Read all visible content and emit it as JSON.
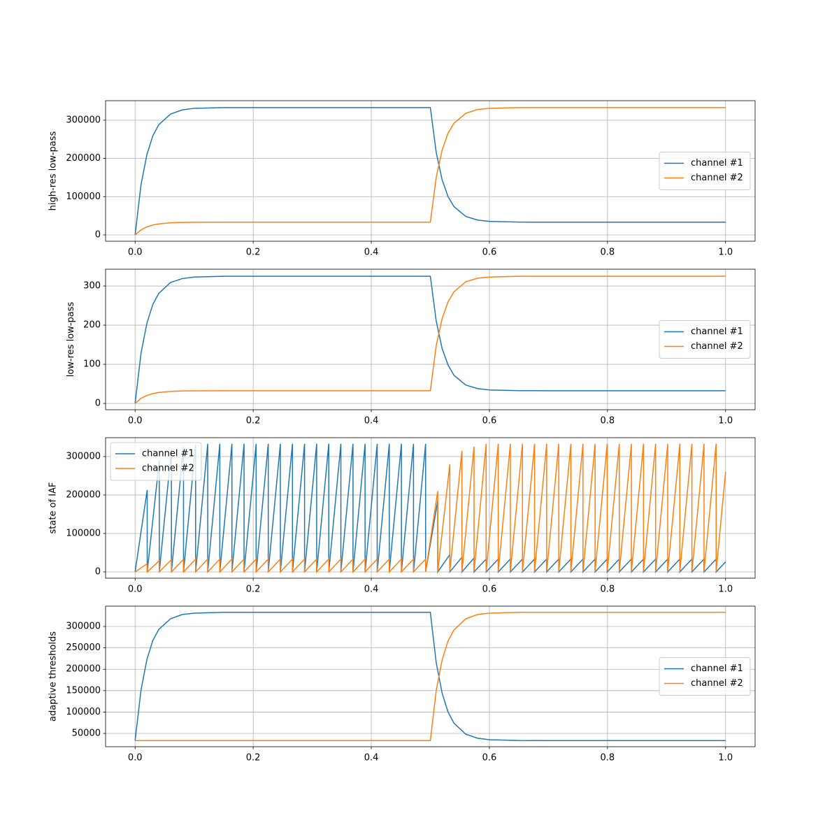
{
  "chart_data": [
    {
      "type": "line",
      "ylabel": "high-res low-pass",
      "grid": true,
      "legend": "center right",
      "xlim": [
        -0.05,
        1.05
      ],
      "ylim": [
        -16500,
        351000
      ],
      "xticks": [
        {
          "value": 0,
          "label": "0.0"
        },
        0.2,
        0.4,
        0.6,
        0.8,
        {
          "value": 1,
          "label": "1.0"
        }
      ],
      "yticks": [
        0,
        100000,
        200000,
        300000
      ],
      "x": [
        0,
        0.01,
        0.02,
        0.03,
        0.04,
        0.06,
        0.08,
        0.1,
        0.15,
        0.2,
        0.3,
        0.4,
        0.5,
        0.51,
        0.52,
        0.53,
        0.54,
        0.56,
        0.58,
        0.6,
        0.65,
        0.7,
        0.8,
        0.9,
        1.0
      ],
      "series": [
        {
          "name": "channel #1",
          "color": "#1f77b4",
          "values": [
            0,
            131000,
            210000,
            259000,
            288000,
            316000,
            327000,
            331000,
            333000,
            333000,
            333000,
            333000,
            333000,
            215000,
            144000,
            100000,
            74000,
            48200,
            38800,
            35300,
            33500,
            33300,
            33300,
            33300,
            33300
          ]
        },
        {
          "name": "channel #2",
          "color": "#ff7f0e",
          "values": [
            0,
            13100,
            21000,
            25900,
            28800,
            31600,
            32700,
            33100,
            33300,
            33300,
            33300,
            33300,
            33300,
            151000,
            222000,
            266000,
            292000,
            318000,
            328000,
            331000,
            333000,
            333000,
            333000,
            333000,
            333000
          ]
        }
      ]
    },
    {
      "type": "line",
      "ylabel": "low-res low-pass",
      "grid": true,
      "legend": "center right",
      "xlim": [
        -0.05,
        1.05
      ],
      "ylim": [
        -16,
        343
      ],
      "xticks": [
        {
          "value": 0,
          "label": "0.0"
        },
        0.2,
        0.4,
        0.6,
        0.8,
        {
          "value": 1,
          "label": "1.0"
        }
      ],
      "yticks": [
        0,
        100,
        200,
        300
      ],
      "x": [
        0,
        0.01,
        0.02,
        0.03,
        0.04,
        0.06,
        0.08,
        0.1,
        0.15,
        0.2,
        0.3,
        0.4,
        0.5,
        0.51,
        0.52,
        0.53,
        0.54,
        0.56,
        0.58,
        0.6,
        0.65,
        0.7,
        0.8,
        0.9,
        1.0
      ],
      "series": [
        {
          "name": "channel #1",
          "color": "#1f77b4",
          "values": [
            0,
            128,
            205,
            253,
            281,
            309,
            319,
            323,
            325,
            325,
            325,
            325,
            325,
            210,
            140,
            98,
            72,
            47,
            38,
            34.5,
            32.7,
            32.5,
            32.5,
            32.5,
            32.5
          ]
        },
        {
          "name": "channel #2",
          "color": "#ff7f0e",
          "values": [
            0,
            13,
            20.5,
            25,
            28,
            31,
            32,
            32.3,
            32.5,
            32.5,
            32.5,
            32.5,
            32.5,
            148,
            217,
            260,
            285,
            311,
            320,
            323,
            325,
            325,
            325,
            325,
            325
          ]
        }
      ]
    },
    {
      "type": "line",
      "ylabel": "state of IAF",
      "grid": true,
      "legend": "upper left",
      "xlim": [
        -0.05,
        1.05
      ],
      "ylim": [
        -16400,
        349000
      ],
      "xticks": [
        {
          "value": 0,
          "label": "0.0"
        },
        0.2,
        0.4,
        0.6,
        0.8,
        {
          "value": 1,
          "label": "1.0"
        }
      ],
      "yticks": [
        0,
        100000,
        200000,
        300000
      ],
      "x": [
        0,
        0.0205,
        0.0205,
        0.041,
        0.041,
        0.0615,
        0.0615,
        0.082,
        0.082,
        0.1025,
        0.1025,
        0.123,
        0.123,
        0.1435,
        0.1435,
        0.164,
        0.164,
        0.1845,
        0.1845,
        0.205,
        0.205,
        0.2255,
        0.2255,
        0.246,
        0.246,
        0.2665,
        0.2665,
        0.287,
        0.287,
        0.3075,
        0.3075,
        0.328,
        0.328,
        0.3485,
        0.3485,
        0.369,
        0.369,
        0.3895,
        0.3895,
        0.41,
        0.41,
        0.4305,
        0.4305,
        0.451,
        0.451,
        0.4715,
        0.4715,
        0.492,
        0.492,
        0.5125,
        0.5125,
        0.533,
        0.533,
        0.5535,
        0.5535,
        0.574,
        0.574,
        0.5945,
        0.5945,
        0.615,
        0.615,
        0.6355,
        0.6355,
        0.656,
        0.656,
        0.6765,
        0.6765,
        0.697,
        0.697,
        0.7175,
        0.7175,
        0.738,
        0.738,
        0.7585,
        0.7585,
        0.779,
        0.779,
        0.7995,
        0.7995,
        0.82,
        0.82,
        0.8405,
        0.8405,
        0.861,
        0.861,
        0.8815,
        0.8815,
        0.902,
        0.902,
        0.9225,
        0.9225,
        0.943,
        0.943,
        0.9635,
        0.9635,
        0.984,
        0.984,
        1.0
      ],
      "series": [
        {
          "name": "channel #1",
          "color": "#1f77b4",
          "values": [
            0,
            213000,
            0,
            290000,
            0,
            318000,
            0,
            327000,
            0,
            331000,
            0,
            333000,
            0,
            333000,
            0,
            333000,
            0,
            333000,
            0,
            333000,
            0,
            333000,
            0,
            333000,
            0,
            333000,
            0,
            333000,
            0,
            333000,
            0,
            333000,
            0,
            333000,
            0,
            333000,
            0,
            333000,
            0,
            333000,
            0,
            333000,
            0,
            333000,
            0,
            333000,
            0,
            333000,
            0,
            185000,
            0,
            45000,
            0,
            38000,
            0,
            36000,
            0,
            33300,
            0,
            33300,
            0,
            33300,
            0,
            33300,
            0,
            33300,
            0,
            33300,
            0,
            33300,
            0,
            33300,
            0,
            33300,
            0,
            33300,
            0,
            33300,
            0,
            33300,
            0,
            33300,
            0,
            33300,
            0,
            33300,
            0,
            33300,
            0,
            33300,
            0,
            33300,
            0,
            33300,
            0,
            33300,
            0,
            26000
          ]
        },
        {
          "name": "channel #2",
          "color": "#ff7f0e",
          "values": [
            0,
            21300,
            0,
            29000,
            0,
            31800,
            0,
            32700,
            0,
            33100,
            0,
            33300,
            0,
            33300,
            0,
            33300,
            0,
            33300,
            0,
            33300,
            0,
            33300,
            0,
            33300,
            0,
            33300,
            0,
            33300,
            0,
            33300,
            0,
            33300,
            0,
            33300,
            0,
            33300,
            0,
            33300,
            0,
            33300,
            0,
            33300,
            0,
            33300,
            0,
            33300,
            0,
            33300,
            0,
            210000,
            0,
            280000,
            0,
            315000,
            0,
            326000,
            0,
            333000,
            0,
            333000,
            0,
            333000,
            0,
            333000,
            0,
            333000,
            0,
            333000,
            0,
            333000,
            0,
            333000,
            0,
            333000,
            0,
            333000,
            0,
            333000,
            0,
            333000,
            0,
            333000,
            0,
            333000,
            0,
            333000,
            0,
            333000,
            0,
            333000,
            0,
            333000,
            0,
            333000,
            0,
            333000,
            0,
            260000
          ]
        }
      ]
    },
    {
      "type": "line",
      "ylabel": "adaptive thresholds",
      "grid": true,
      "legend": "center right",
      "xlim": [
        -0.05,
        1.05
      ],
      "ylim": [
        19000,
        347400
      ],
      "xticks": [
        {
          "value": 0,
          "label": "0.0"
        },
        0.2,
        0.4,
        0.6,
        0.8,
        {
          "value": 1,
          "label": "1.0"
        }
      ],
      "yticks": [
        50000,
        100000,
        150000,
        200000,
        250000,
        300000
      ],
      "x": [
        0,
        0.01,
        0.02,
        0.03,
        0.04,
        0.06,
        0.08,
        0.1,
        0.15,
        0.2,
        0.3,
        0.4,
        0.5,
        0.51,
        0.52,
        0.53,
        0.54,
        0.56,
        0.58,
        0.6,
        0.65,
        0.7,
        0.8,
        0.9,
        1.0
      ],
      "series": [
        {
          "name": "channel #1",
          "color": "#1f77b4",
          "values": [
            33300,
            151000,
            223000,
            267000,
            293000,
            318000,
            328000,
            331000,
            333000,
            333000,
            333000,
            333000,
            333000,
            215000,
            144000,
            100000,
            74000,
            48200,
            38800,
            35300,
            33500,
            33300,
            33300,
            33300,
            33300
          ]
        },
        {
          "name": "channel #2",
          "color": "#ff7f0e",
          "values": [
            33300,
            33300,
            33300,
            33300,
            33300,
            33300,
            33300,
            33300,
            33300,
            33300,
            33300,
            33300,
            33300,
            151000,
            222000,
            266000,
            292000,
            318000,
            328000,
            331000,
            333000,
            333000,
            333000,
            333000,
            333000
          ]
        }
      ]
    }
  ]
}
